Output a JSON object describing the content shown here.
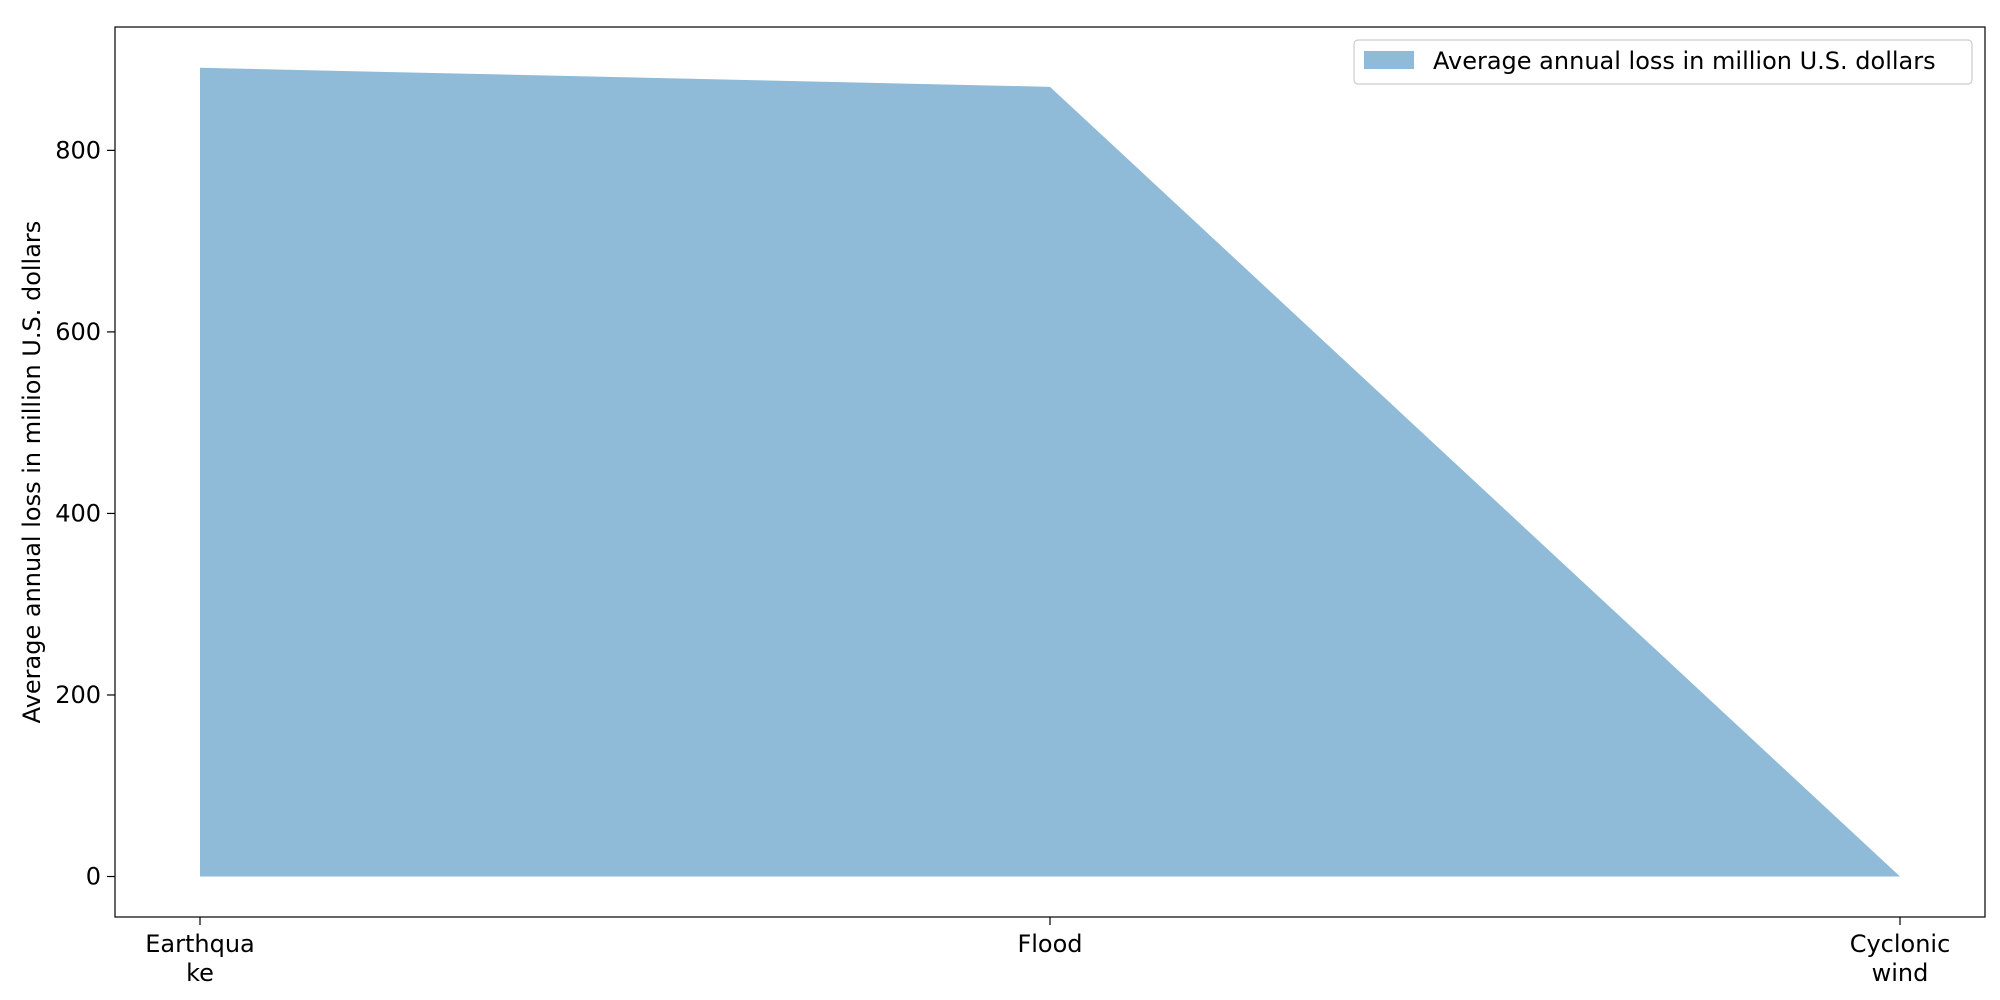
{
  "chart_data": {
    "type": "area",
    "categories": [
      "Earthquake",
      "Flood",
      "Cyclonic wind"
    ],
    "category_labels": [
      [
        "Earthqua",
        "ke"
      ],
      [
        "Flood"
      ],
      [
        "Cyclonic",
        "wind"
      ]
    ],
    "series": [
      {
        "name": "Average annual loss in million U.S. dollars",
        "values": [
          891,
          870,
          0
        ],
        "color": "#1f77b4",
        "opacity": 0.5
      }
    ],
    "title": "",
    "xlabel": "",
    "ylabel": "Average annual loss in million U.S. dollars",
    "ylim": [
      -44.6,
      935.9
    ],
    "yticks": [
      0,
      200,
      400,
      600,
      800
    ],
    "grid": false,
    "legend_position": "top-right"
  }
}
